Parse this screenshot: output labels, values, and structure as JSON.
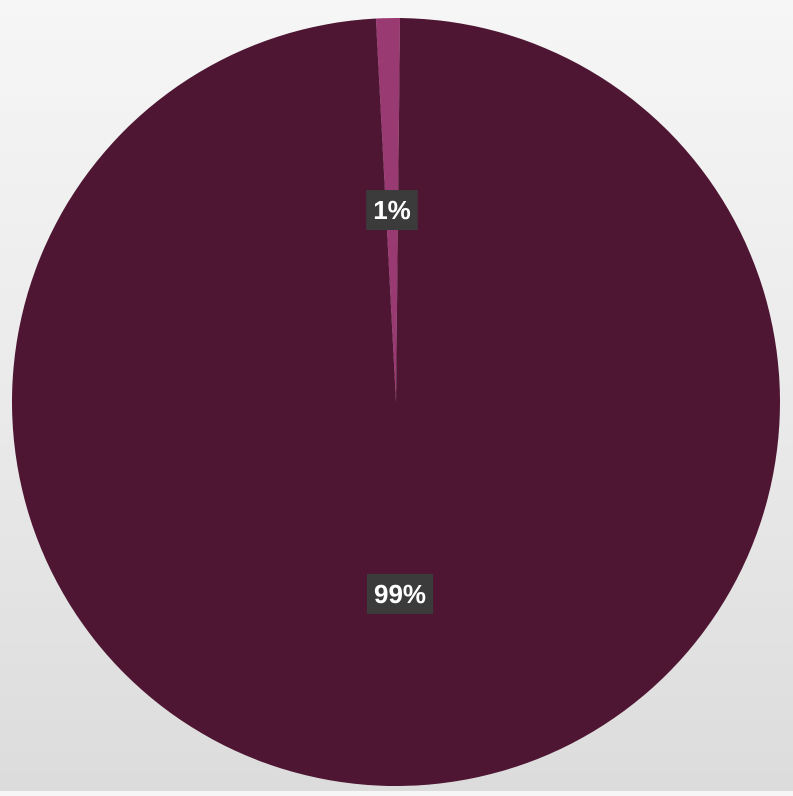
{
  "chart_data": {
    "type": "pie",
    "slices": [
      {
        "label": "1%",
        "value": 1,
        "color": "#9a3a72"
      },
      {
        "label": "99%",
        "value": 99,
        "color": "#4e1633"
      }
    ],
    "start_angle_deg": -3,
    "data_labels": [
      "1%",
      "99%"
    ],
    "data_label_background": "#3b3b3b",
    "legend": "none",
    "title": ""
  }
}
